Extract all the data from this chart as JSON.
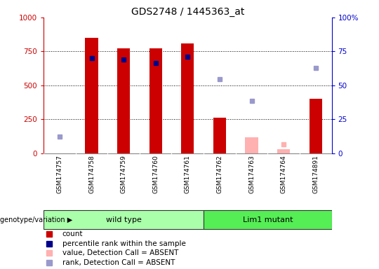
{
  "title": "GDS2748 / 1445363_at",
  "samples": [
    "GSM174757",
    "GSM174758",
    "GSM174759",
    "GSM174760",
    "GSM174761",
    "GSM174762",
    "GSM174763",
    "GSM174764",
    "GSM174891"
  ],
  "n_samples": 9,
  "present_bars": {
    "1": 850,
    "2": 775,
    "3": 775,
    "4": 810,
    "5": 260,
    "8": 400
  },
  "absent_bars": {
    "6": 115,
    "7": 30
  },
  "present_rank_dots": {
    "1": 700,
    "2": 690,
    "3": 665,
    "4": 710
  },
  "absent_rank_dots": {
    "0": 120,
    "5": 545,
    "6": 385,
    "8": 630
  },
  "absent_value_dots": {
    "7": 65
  },
  "yticks_left": [
    0,
    250,
    500,
    750,
    1000
  ],
  "yticks_right": [
    0,
    25,
    50,
    75,
    100
  ],
  "ytick_right_labels": [
    "0",
    "25",
    "50",
    "75",
    "100%"
  ],
  "left_axis_color": "#CC0000",
  "right_axis_color": "#0000CC",
  "bar_color_present": "#CC0000",
  "bar_color_absent": "#FFB0B0",
  "dot_color_present": "#00008B",
  "dot_color_absent": "#9999CC",
  "dot_color_absent_value": "#FFB0B0",
  "grid_color": "#000000",
  "grid_linestyle": "dotted",
  "grid_linewidth": 0.7,
  "bar_width": 0.4,
  "dot_size": 4,
  "wild_type_color": "#AAFFAA",
  "mutant_color": "#55EE55",
  "sample_bg_color": "#CCCCCC",
  "wild_type_range": [
    0,
    4
  ],
  "mutant_range": [
    5,
    8
  ],
  "legend": [
    {
      "label": "count",
      "color": "#CC0000"
    },
    {
      "label": "percentile rank within the sample",
      "color": "#00008B"
    },
    {
      "label": "value, Detection Call = ABSENT",
      "color": "#FFB0B0"
    },
    {
      "label": "rank, Detection Call = ABSENT",
      "color": "#9999CC"
    }
  ]
}
